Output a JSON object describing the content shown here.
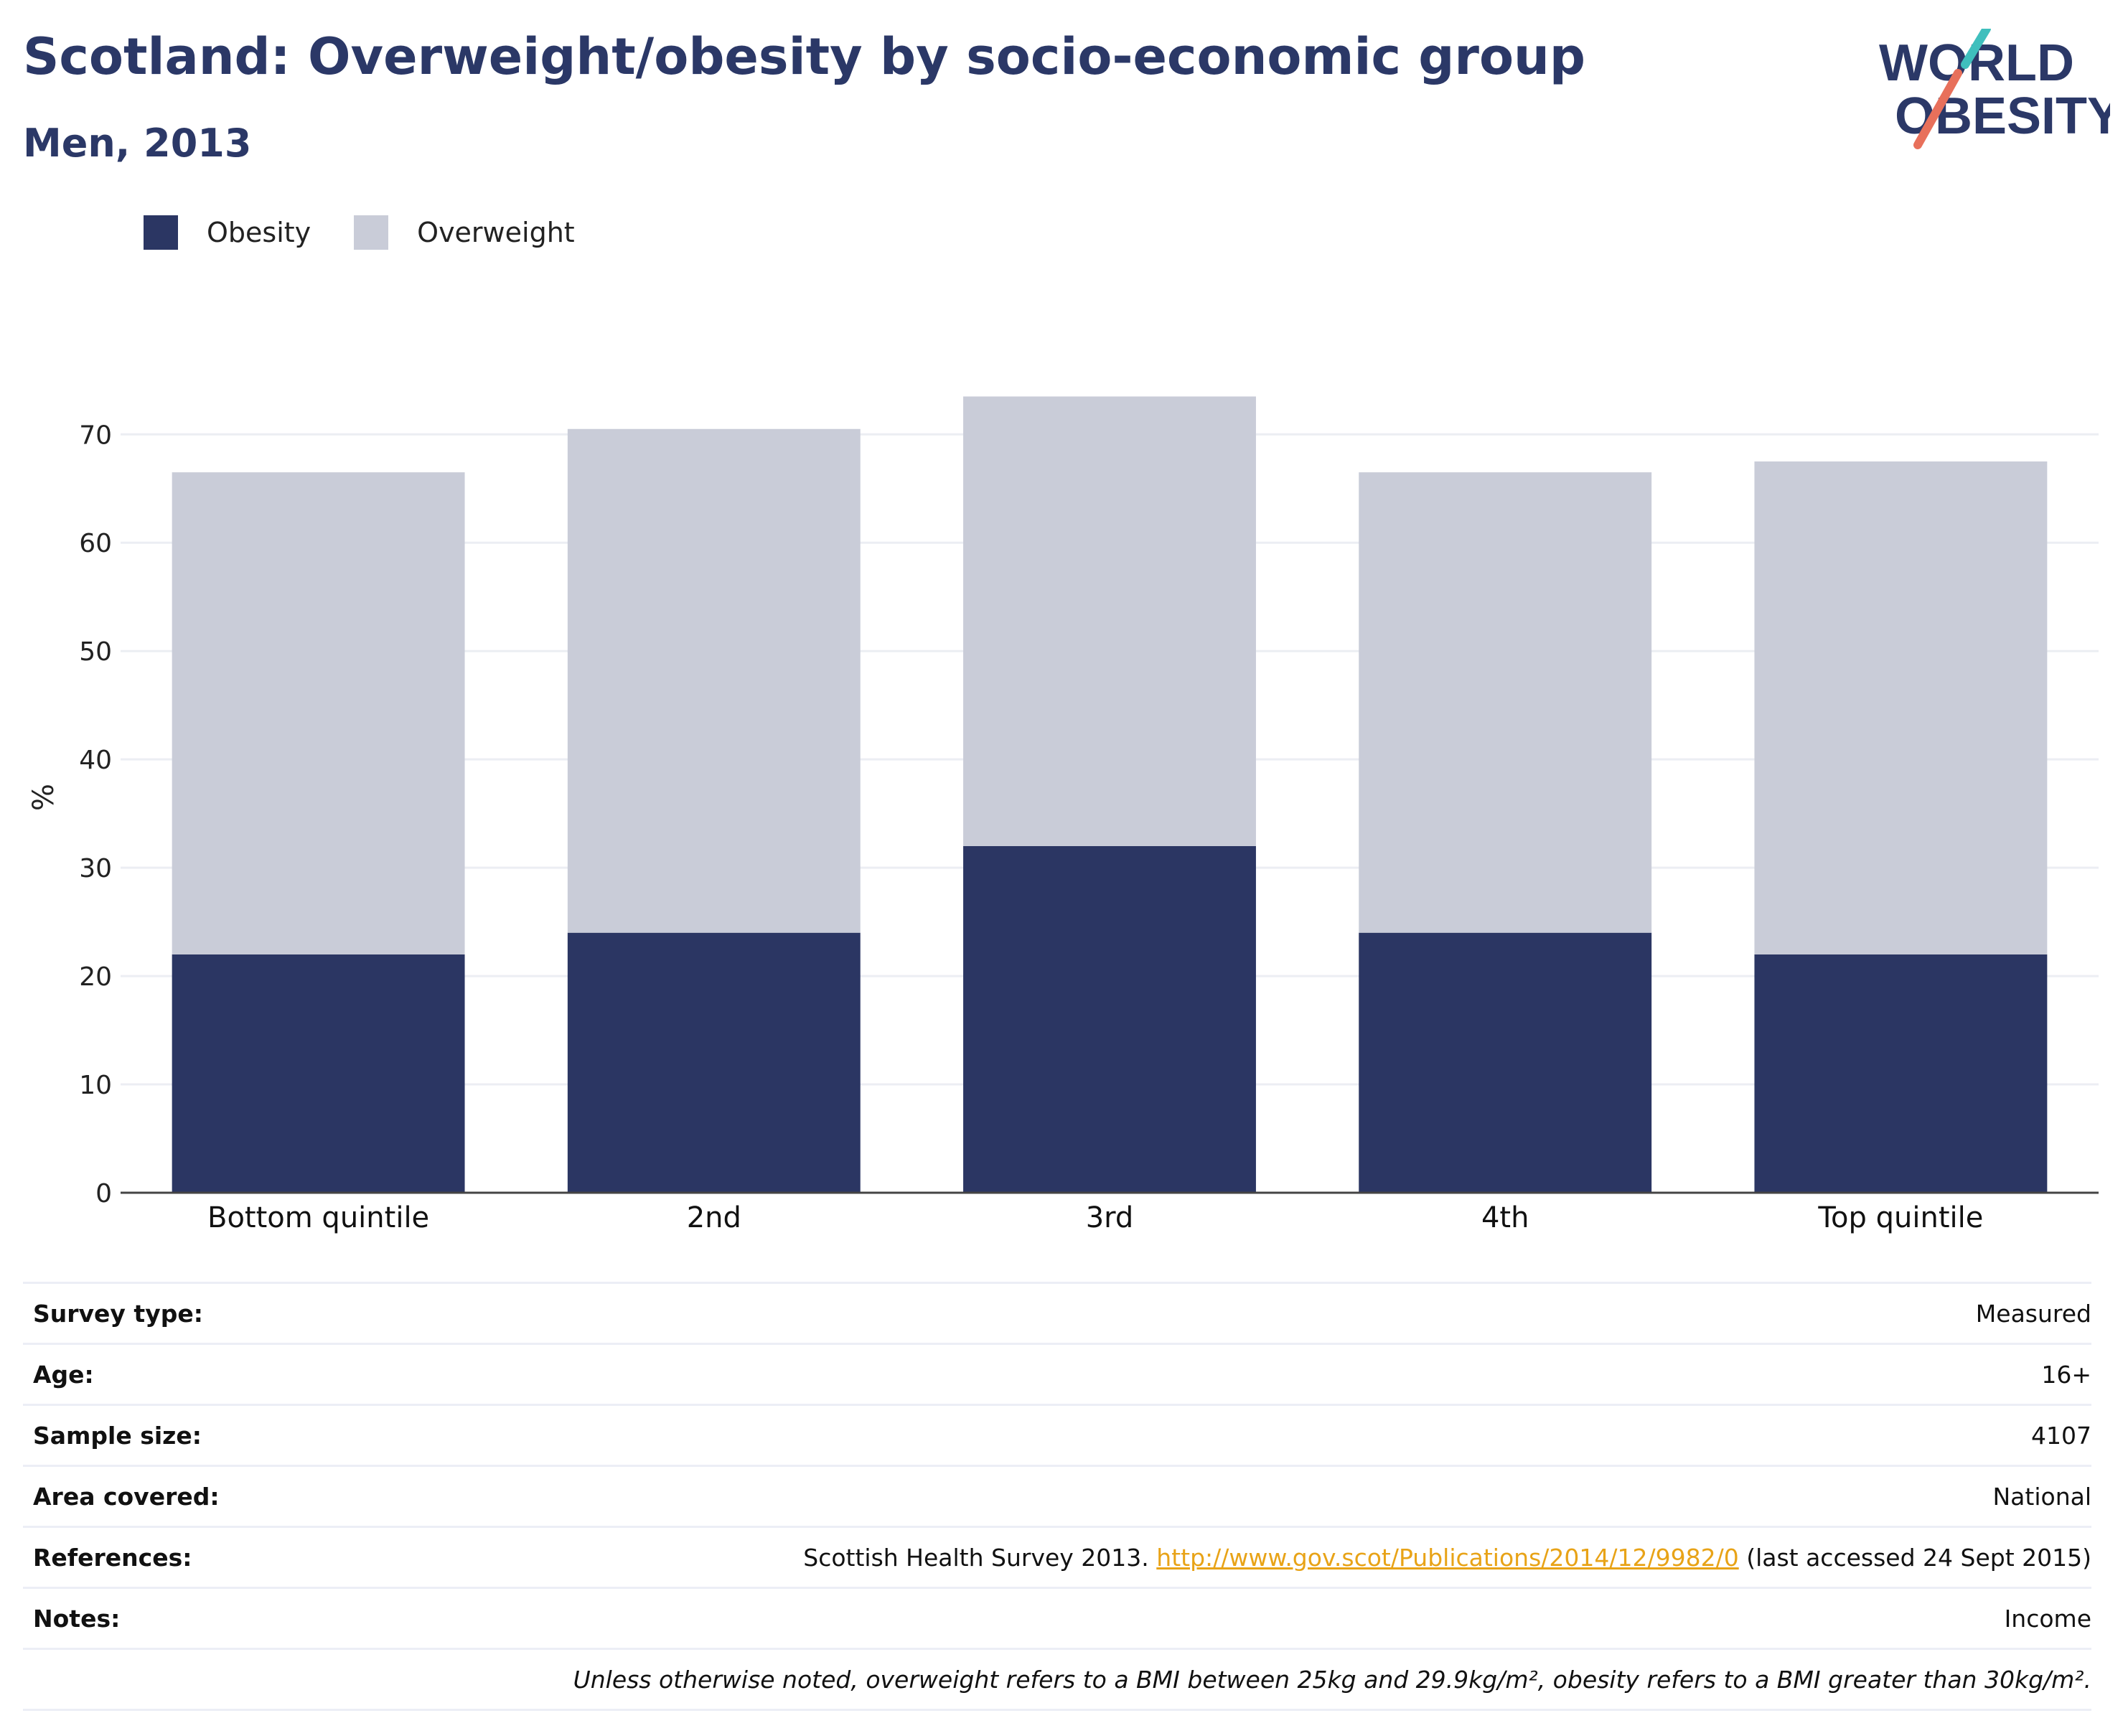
{
  "header": {
    "title": "Scotland: Overweight/obesity by socio-economic group",
    "subtitle": "Men, 2013",
    "logo_line1": "WORLD",
    "logo_line2": "OBESITY"
  },
  "colors": {
    "obesity": "#2b3663",
    "overweight": "#c9ccd8",
    "title": "#2b3867",
    "logo_accent_teal": "#3fbfbd",
    "logo_accent_coral": "#e8705b",
    "link": "#e8a317"
  },
  "chart_data": {
    "type": "bar",
    "stacked": true,
    "categories": [
      "Bottom quintile",
      "2nd",
      "3rd",
      "4th",
      "Top quintile"
    ],
    "series": [
      {
        "name": "Obesity",
        "values": [
          22,
          24,
          32,
          24,
          22
        ]
      },
      {
        "name": "Overweight",
        "values": [
          44.5,
          46.5,
          41.5,
          42.5,
          45.5
        ]
      }
    ],
    "ylabel": "%",
    "ylim": [
      0,
      73
    ],
    "yticks": [
      0,
      10,
      20,
      30,
      40,
      50,
      60,
      70
    ],
    "grid": true,
    "legend_position": "top-left"
  },
  "meta": {
    "survey_type_label": "Survey type:",
    "survey_type": "Measured",
    "age_label": "Age:",
    "age": "16+",
    "sample_size_label": "Sample size:",
    "sample_size": "4107",
    "area_label": "Area covered:",
    "area": "National",
    "references_label": "References:",
    "references_text": "Scottish Health Survey 2013.",
    "references_link": "http://www.gov.scot/Publications/2014/12/9982/0",
    "references_suffix": "(last accessed 24 Sept 2015)",
    "notes_label": "Notes:",
    "notes": "Income",
    "footnote": "Unless otherwise noted, overweight refers to a BMI between 25kg and 29.9kg/m², obesity refers to a BMI greater than 30kg/m²."
  }
}
